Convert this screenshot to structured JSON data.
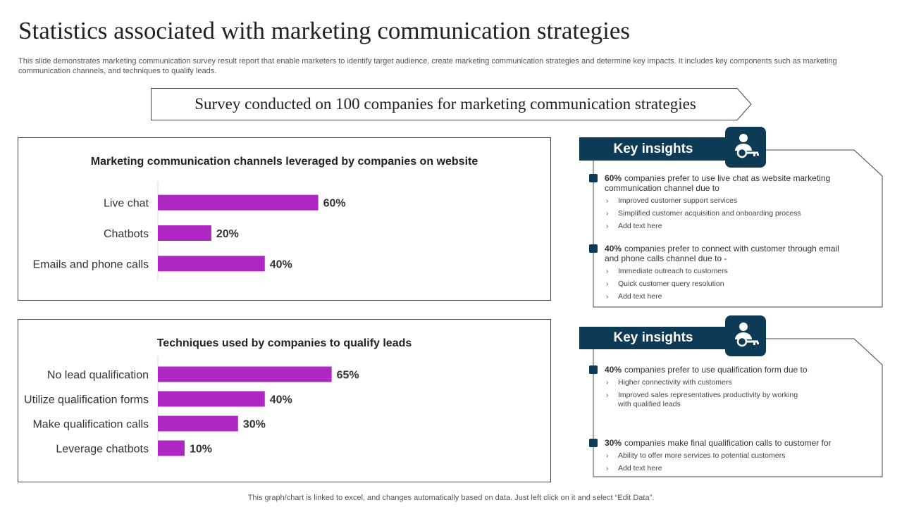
{
  "page": {
    "title": "Statistics associated with marketing communication strategies",
    "subtitle": "This slide demonstrates marketing communication survey result report that enable marketers to identify target audience, create marketing communication strategies and determine key impacts. It includes key components such as marketing communication channels, and techniques to qualify leads.",
    "banner": "Survey conducted on 100 companies for marketing communication strategies",
    "footer": "This graph/chart is linked to excel,  and changes automatically based on data. Just left click on it and select “Edit Data”."
  },
  "colors": {
    "bar": "#ae27c3",
    "accent": "#0d3b55",
    "border": "#444444"
  },
  "chart_data": [
    {
      "type": "bar",
      "orientation": "horizontal",
      "title": "Marketing communication channels leveraged by companies on website",
      "categories": [
        "Live chat",
        "Chatbots",
        "Emails and phone calls"
      ],
      "values": [
        60,
        20,
        40
      ],
      "value_labels": [
        "60%",
        "20%",
        "40%"
      ],
      "xlim": [
        0,
        100
      ],
      "grid": false,
      "legend": "none"
    },
    {
      "type": "bar",
      "orientation": "horizontal",
      "title": "Techniques used by companies to qualify leads",
      "categories": [
        "No lead qualification",
        "Utilize qualification forms",
        "Make qualification calls",
        "Leverage chatbots"
      ],
      "values": [
        65,
        40,
        30,
        10
      ],
      "value_labels": [
        "65%",
        "40%",
        "30%",
        "10%"
      ],
      "xlim": [
        0,
        100
      ],
      "grid": false,
      "legend": "none"
    }
  ],
  "insights": [
    {
      "header": "Key insights",
      "icon": "user-key-icon",
      "items": [
        {
          "pct": "60%",
          "text": "companies prefer to use live chat as website marketing communication channel due to",
          "subs": [
            "Improved customer support services",
            "Simplified customer acquisition and onboarding process",
            "Add text here"
          ]
        },
        {
          "pct": "40%",
          "text": "companies prefer to connect with customer through email and phone calls channel due to -",
          "subs": [
            "Immediate  outreach to customers",
            "Quick customer query resolution",
            "Add text here"
          ]
        }
      ]
    },
    {
      "header": "Key insights",
      "icon": "user-key-icon",
      "items": [
        {
          "pct": "40%",
          "text": "companies prefer to use qualification form due to",
          "subs": [
            "Higher connectivity with customers",
            "Improved sales representatives productivity by working with qualified leads"
          ]
        },
        {
          "pct": "30%",
          "text": "companies make final qualification calls to customer for",
          "subs": [
            "Ability to offer more services to potential customers",
            "Add text here"
          ]
        }
      ]
    }
  ]
}
